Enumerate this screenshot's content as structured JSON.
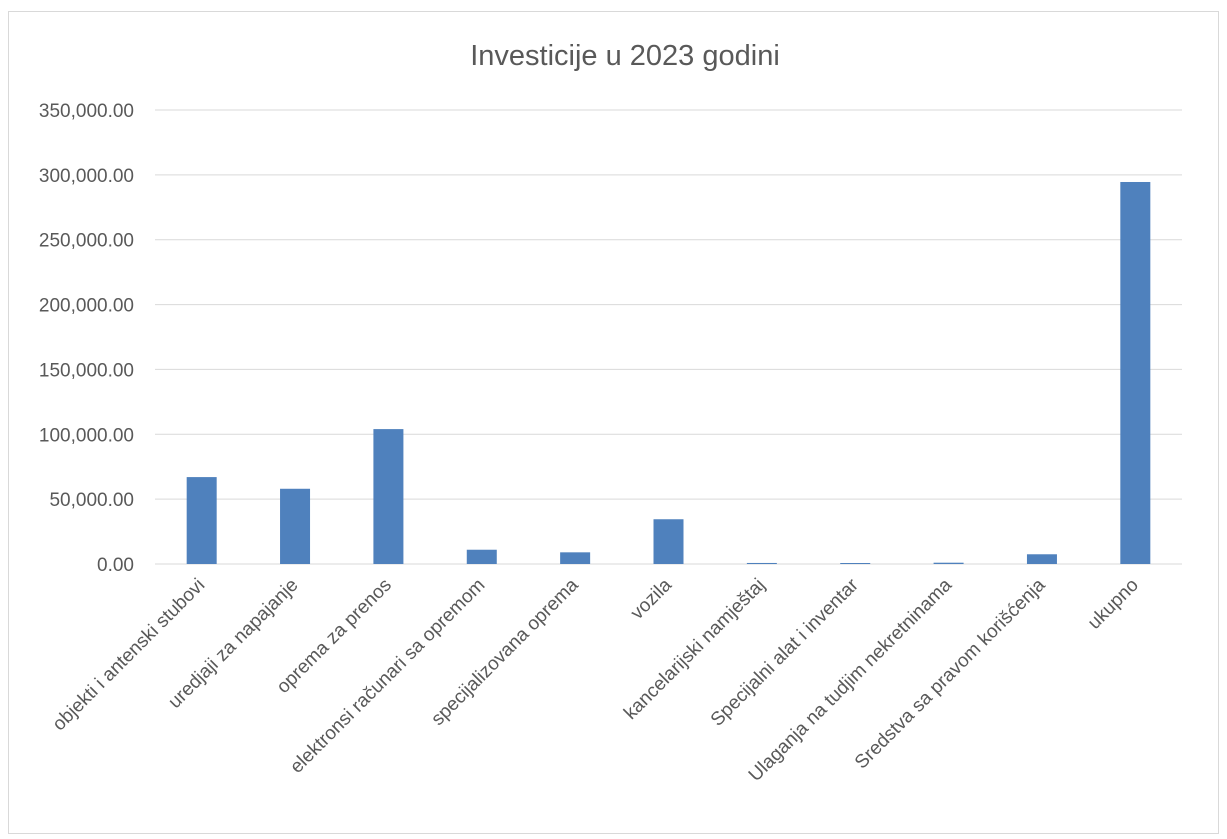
{
  "chart_data": {
    "type": "bar",
    "title": "Investicije u 2023 godini",
    "xlabel": "",
    "ylabel": "",
    "ylim": [
      0,
      350000
    ],
    "yticks": [
      0,
      50000,
      100000,
      150000,
      200000,
      250000,
      300000,
      350000
    ],
    "ytick_labels": [
      "0.00",
      "50,000.00",
      "100,000.00",
      "150,000.00",
      "200,000.00",
      "250,000.00",
      "300,000.00",
      "350,000.00"
    ],
    "grid": true,
    "legend": "none",
    "categories": [
      "objekti i antenski stubovi",
      "uredjaji za napajanje",
      "oprema za prenos",
      "elektronsi računari sa opremom",
      "specijalizovana oprema",
      "vozila",
      "kancelarijski namještaj",
      "Specijalni alat i inventar",
      "Ulaganja na tudjim nekretninama",
      "Sredstva sa pravom korišćenja",
      "ukupno"
    ],
    "values": [
      67000,
      58000,
      104000,
      11000,
      9000,
      34500,
      800,
      300,
      1000,
      7500,
      294500
    ],
    "bar_color": "#4f81bd",
    "grid_color": "#d9d9d9"
  }
}
